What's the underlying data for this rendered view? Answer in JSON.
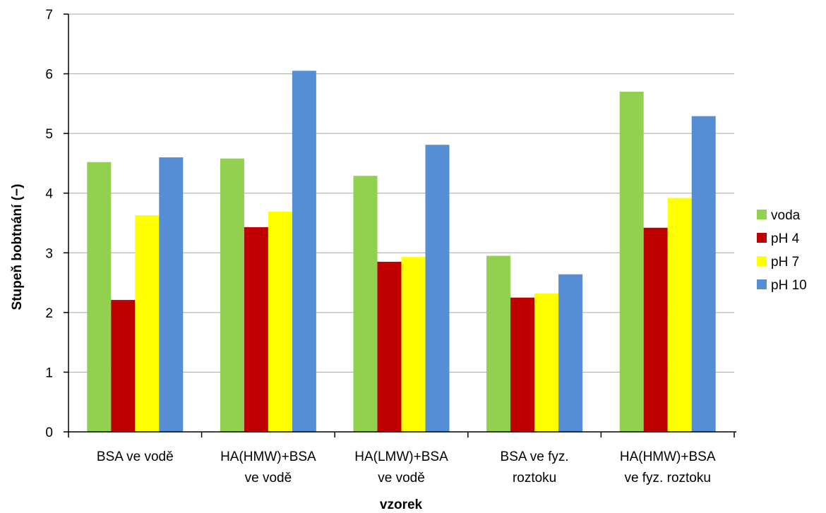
{
  "chart_data": {
    "type": "bar",
    "xlabel": "vzorek",
    "ylabel": "Stupeň bobtnání (−)",
    "ylim": [
      0,
      7
    ],
    "yticks": [
      0,
      1,
      2,
      3,
      4,
      5,
      6,
      7
    ],
    "grid": true,
    "legend_position": "right",
    "categories": [
      [
        "BSA ve vodě"
      ],
      [
        "HA(HMW)+BSA",
        "ve vodě"
      ],
      [
        "HA(LMW)+BSA",
        "ve vodě"
      ],
      [
        "BSA ve fyz.",
        "roztoku"
      ],
      [
        "HA(HMW)+BSA",
        "ve fyz. roztoku"
      ]
    ],
    "series": [
      {
        "name": "voda",
        "color": "#92d050",
        "values": [
          4.52,
          4.58,
          4.29,
          2.95,
          5.7
        ]
      },
      {
        "name": "pH 4",
        "color": "#c00000",
        "values": [
          2.21,
          3.43,
          2.85,
          2.25,
          3.42
        ]
      },
      {
        "name": "pH 7",
        "color": "#ffff00",
        "values": [
          3.63,
          3.69,
          2.93,
          2.32,
          3.92
        ]
      },
      {
        "name": "pH 10",
        "color": "#558ed5",
        "values": [
          4.6,
          6.05,
          4.81,
          2.64,
          5.29
        ]
      }
    ]
  }
}
